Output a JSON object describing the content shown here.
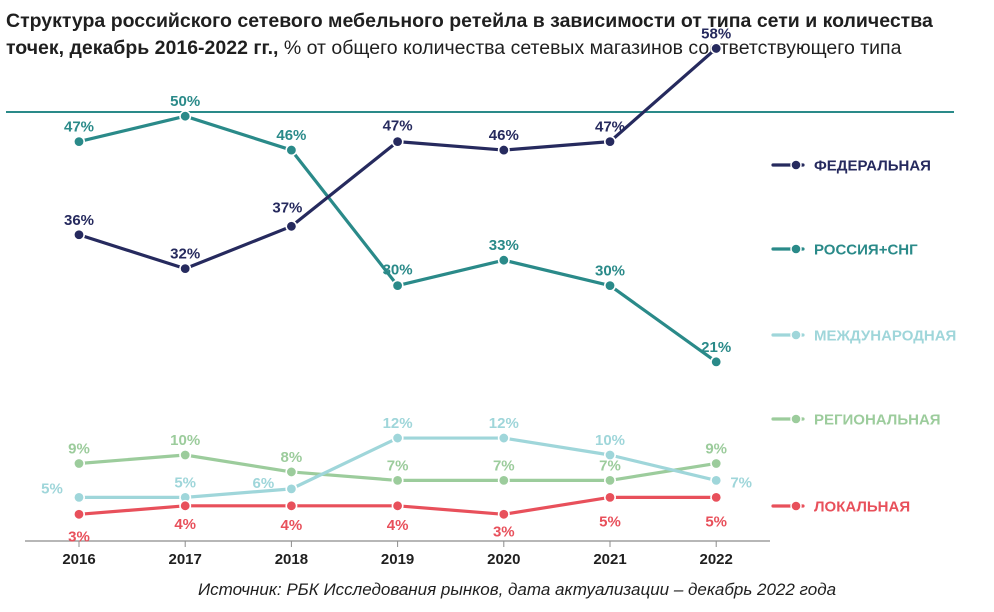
{
  "title": {
    "bold": "Структура российского сетевого мебельного ретейла в зависимости от типа сети и количества точек, декабрь 2016-2022 гг.,",
    "normal": " % от общего количества сетевых магазинов соответствующего типа"
  },
  "source": "Источник: РБК Исследования рынков, дата актуализации – декабрь 2022 года",
  "chart_data": {
    "type": "line",
    "title": "Структура российского сетевого мебельного ретейла в зависимости от типа сети и количества точек, декабрь 2016-2022 гг., % от общего количества сетевых магазинов соответствующего типа",
    "categories": [
      "2016",
      "2017",
      "2018",
      "2019",
      "2020",
      "2021",
      "2022"
    ],
    "xlabel": "",
    "ylabel": "",
    "unit": "%",
    "series": [
      {
        "name": "ФЕДЕРАЛЬНАЯ",
        "color": "#262a5e",
        "values": [
          36,
          32,
          37,
          47,
          46,
          47,
          58
        ]
      },
      {
        "name": "РОССИЯ+СНГ",
        "color": "#2a8a89",
        "values": [
          47,
          50,
          46,
          30,
          33,
          30,
          21
        ]
      },
      {
        "name": "МЕЖДУНАРОДНАЯ",
        "color": "#9fd6da",
        "values": [
          5,
          5,
          6,
          12,
          12,
          10,
          7
        ]
      },
      {
        "name": "РЕГИОНАЛЬНАЯ",
        "color": "#9ccc9c",
        "values": [
          9,
          10,
          8,
          7,
          7,
          7,
          9
        ]
      },
      {
        "name": "ЛОКАЛЬНАЯ",
        "color": "#e8505b",
        "values": [
          3,
          4,
          4,
          4,
          3,
          5,
          5
        ]
      }
    ],
    "legend_position": "right"
  }
}
